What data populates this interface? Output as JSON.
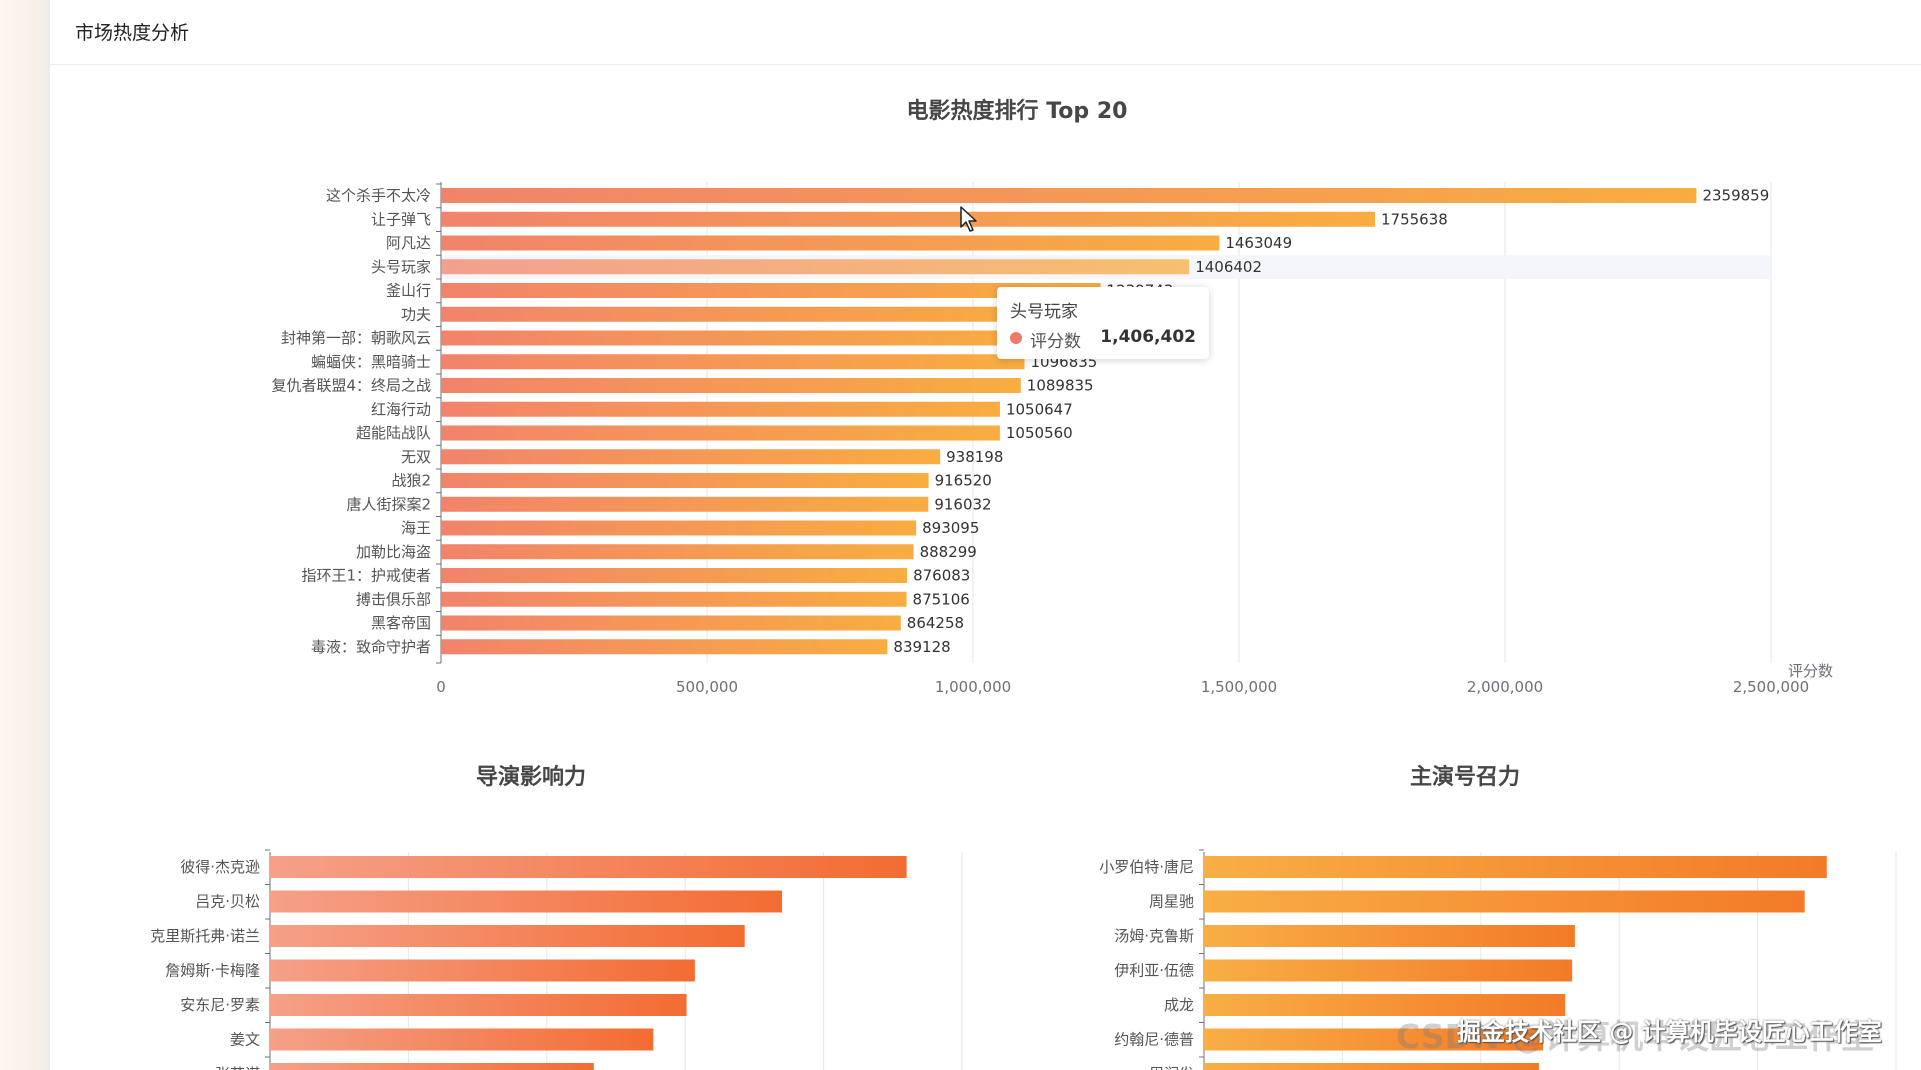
{
  "page": {
    "title": "市场热度分析"
  },
  "colors": {
    "bar_start": "#f2836b",
    "bar_end": "#f8ad40",
    "bar2_start": "#f5a088",
    "bar2_end": "#f36c32",
    "bar3_start": "#f8ae45",
    "bar3_end": "#f37a28",
    "axis": "#6e7079",
    "grid": "#e6e6e6"
  },
  "chart_data": [
    {
      "type": "bar",
      "orientation": "horizontal",
      "title": "电影热度排行 Top 20",
      "xlabel": "评分数",
      "ylabel": "",
      "xlim": [
        0,
        2500000
      ],
      "x_ticks": [
        "0",
        "500,000",
        "1,000,000",
        "1,500,000",
        "2,000,000",
        "2,500,000"
      ],
      "categories": [
        "这个杀手不太冷",
        "让子弹飞",
        "阿凡达",
        "头号玩家",
        "釜山行",
        "功夫",
        "封神第一部：朝歌风云",
        "蝙蝠侠：黑暗骑士",
        "复仇者联盟4：终局之战",
        "红海行动",
        "超能陆战队",
        "无双",
        "战狼2",
        "唐人街探案2",
        "海王",
        "加勒比海盗",
        "指环王1：护戒使者",
        "搏击俱乐部",
        "黑客帝国",
        "毒液：致命守护者"
      ],
      "values": [
        2359859,
        1755638,
        1463049,
        1406402,
        1239743,
        1157820,
        1113452,
        1096835,
        1089835,
        1050647,
        1050560,
        938198,
        916520,
        916032,
        893095,
        888299,
        876083,
        875106,
        864258,
        839128
      ],
      "highlighted": "头号玩家",
      "tooltip": {
        "name": "头号玩家",
        "series": "评分数",
        "value": "1,406,402"
      }
    },
    {
      "type": "bar",
      "orientation": "horizontal",
      "title": "导演影响力",
      "xlim": [
        0,
        5
      ],
      "categories": [
        "彼得·杰克逊",
        "吕克·贝松",
        "克里斯托弗·诺兰",
        "詹姆斯·卡梅隆",
        "安东尼·罗素",
        "姜文",
        "张艺谋"
      ],
      "values": [
        4.6,
        3.7,
        3.43,
        3.07,
        3.01,
        2.77,
        2.34
      ]
    },
    {
      "type": "bar",
      "orientation": "horizontal",
      "title": "主演号召力",
      "xlim": [
        0,
        5
      ],
      "categories": [
        "小罗伯特·唐尼",
        "周星驰",
        "汤姆·克鲁斯",
        "伊利亚·伍德",
        "成龙",
        "约翰尼·德普",
        "周润发"
      ],
      "values": [
        4.5,
        4.34,
        2.68,
        2.66,
        2.61,
        2.45,
        2.42
      ]
    }
  ],
  "watermark": "CSDN @计算机毕设匠心工作室",
  "watermark_top": "掘金技术社区 @ 计算机毕设匠心工作室"
}
